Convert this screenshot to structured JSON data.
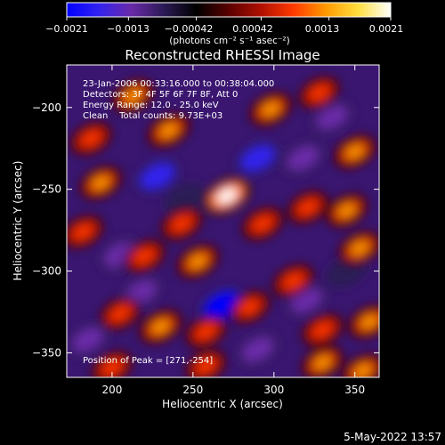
{
  "colorbar": {
    "tick_labels": [
      "−0.0021",
      "−0.0013",
      "−0.00042",
      "0.00042",
      "0.0013",
      "0.0021"
    ],
    "tick_values": [
      -0.0021,
      -0.0013,
      -0.00042,
      0.00042,
      0.0013,
      0.0021
    ],
    "range": [
      -0.0021,
      0.0021
    ],
    "units_text": "(photons cm⁻² s⁻¹ asec⁻²)",
    "colors": [
      "#0000ff",
      "#3322ee",
      "#6a2aa8",
      "#2a1a55",
      "#000000",
      "#5a0000",
      "#b01000",
      "#ff3a00",
      "#ff9a00",
      "#ffe040",
      "#ffffff"
    ]
  },
  "plot": {
    "title": "Reconstructed RHESSI Image",
    "info_lines": [
      "23-Jan-2006 00:33:16.000 to 00:38:04.000",
      "Detectors: 3F 4F 5F 6F 7F 8F, Att 0",
      "Energy Range: 12.0 - 25.0 keV",
      "Clean    Total counts: 9.73E+03"
    ],
    "peak_label": "Position of Peak = [271,-254]",
    "date_stamp": "5-May-2022 13:57"
  },
  "chart_data": {
    "type": "heatmap",
    "title": "Reconstructed RHESSI Image",
    "xlabel": "Heliocentric X (arcsec)",
    "ylabel": "Heliocentric Y (arcsec)",
    "xlim": [
      172,
      365
    ],
    "ylim": [
      -365,
      -174
    ],
    "x_ticks": [
      200,
      250,
      300,
      350
    ],
    "y_ticks": [
      -200,
      -250,
      -300,
      -350
    ],
    "x_tick_labels": [
      "200",
      "250",
      "300",
      "350"
    ],
    "y_tick_labels": [
      "−200",
      "−250",
      "−300",
      "−350"
    ],
    "peak": {
      "x": 271,
      "y": -254
    },
    "value_range": [
      -0.0021,
      0.0021
    ],
    "blobs": [
      {
        "x": 271,
        "y": -254,
        "value": 0.0021
      },
      {
        "x": 235,
        "y": -214,
        "value": 0.0013
      },
      {
        "x": 213,
        "y": -193,
        "value": 0.0011
      },
      {
        "x": 298,
        "y": -201,
        "value": 0.0012
      },
      {
        "x": 328,
        "y": -191,
        "value": 0.0009
      },
      {
        "x": 350,
        "y": -227,
        "value": 0.0012
      },
      {
        "x": 187,
        "y": -219,
        "value": 0.001
      },
      {
        "x": 193,
        "y": -246,
        "value": 0.0011
      },
      {
        "x": 243,
        "y": -271,
        "value": 0.001
      },
      {
        "x": 182,
        "y": -276,
        "value": 0.0009
      },
      {
        "x": 220,
        "y": -291,
        "value": 0.001
      },
      {
        "x": 253,
        "y": -294,
        "value": 0.0012
      },
      {
        "x": 293,
        "y": -271,
        "value": 0.001
      },
      {
        "x": 321,
        "y": -261,
        "value": 0.0009
      },
      {
        "x": 345,
        "y": -263,
        "value": 0.0011
      },
      {
        "x": 353,
        "y": -286,
        "value": 0.0012
      },
      {
        "x": 312,
        "y": -306,
        "value": 0.001
      },
      {
        "x": 205,
        "y": -326,
        "value": 0.0009
      },
      {
        "x": 230,
        "y": -334,
        "value": 0.0013
      },
      {
        "x": 258,
        "y": -337,
        "value": 0.0009
      },
      {
        "x": 285,
        "y": -322,
        "value": 0.0008
      },
      {
        "x": 330,
        "y": -336,
        "value": 0.001
      },
      {
        "x": 359,
        "y": -331,
        "value": 0.0011
      },
      {
        "x": 200,
        "y": -359,
        "value": 0.0009
      },
      {
        "x": 258,
        "y": -358,
        "value": 0.0008
      },
      {
        "x": 330,
        "y": -356,
        "value": 0.0011
      },
      {
        "x": 355,
        "y": -361,
        "value": 0.0012
      },
      {
        "x": 228,
        "y": -242,
        "value": -0.0016
      },
      {
        "x": 290,
        "y": -231,
        "value": -0.0015
      },
      {
        "x": 268,
        "y": -321,
        "value": -0.0021
      },
      {
        "x": 318,
        "y": -231,
        "value": -0.0012
      },
      {
        "x": 336,
        "y": -206,
        "value": -0.0011
      },
      {
        "x": 245,
        "y": -256,
        "value": -0.001
      },
      {
        "x": 205,
        "y": -290,
        "value": -0.0013
      },
      {
        "x": 290,
        "y": -348,
        "value": -0.0012
      },
      {
        "x": 218,
        "y": -313,
        "value": -0.0011
      },
      {
        "x": 320,
        "y": -318,
        "value": -0.0012
      },
      {
        "x": 185,
        "y": -342,
        "value": -0.0011
      },
      {
        "x": 345,
        "y": -300,
        "value": -0.001
      }
    ]
  }
}
